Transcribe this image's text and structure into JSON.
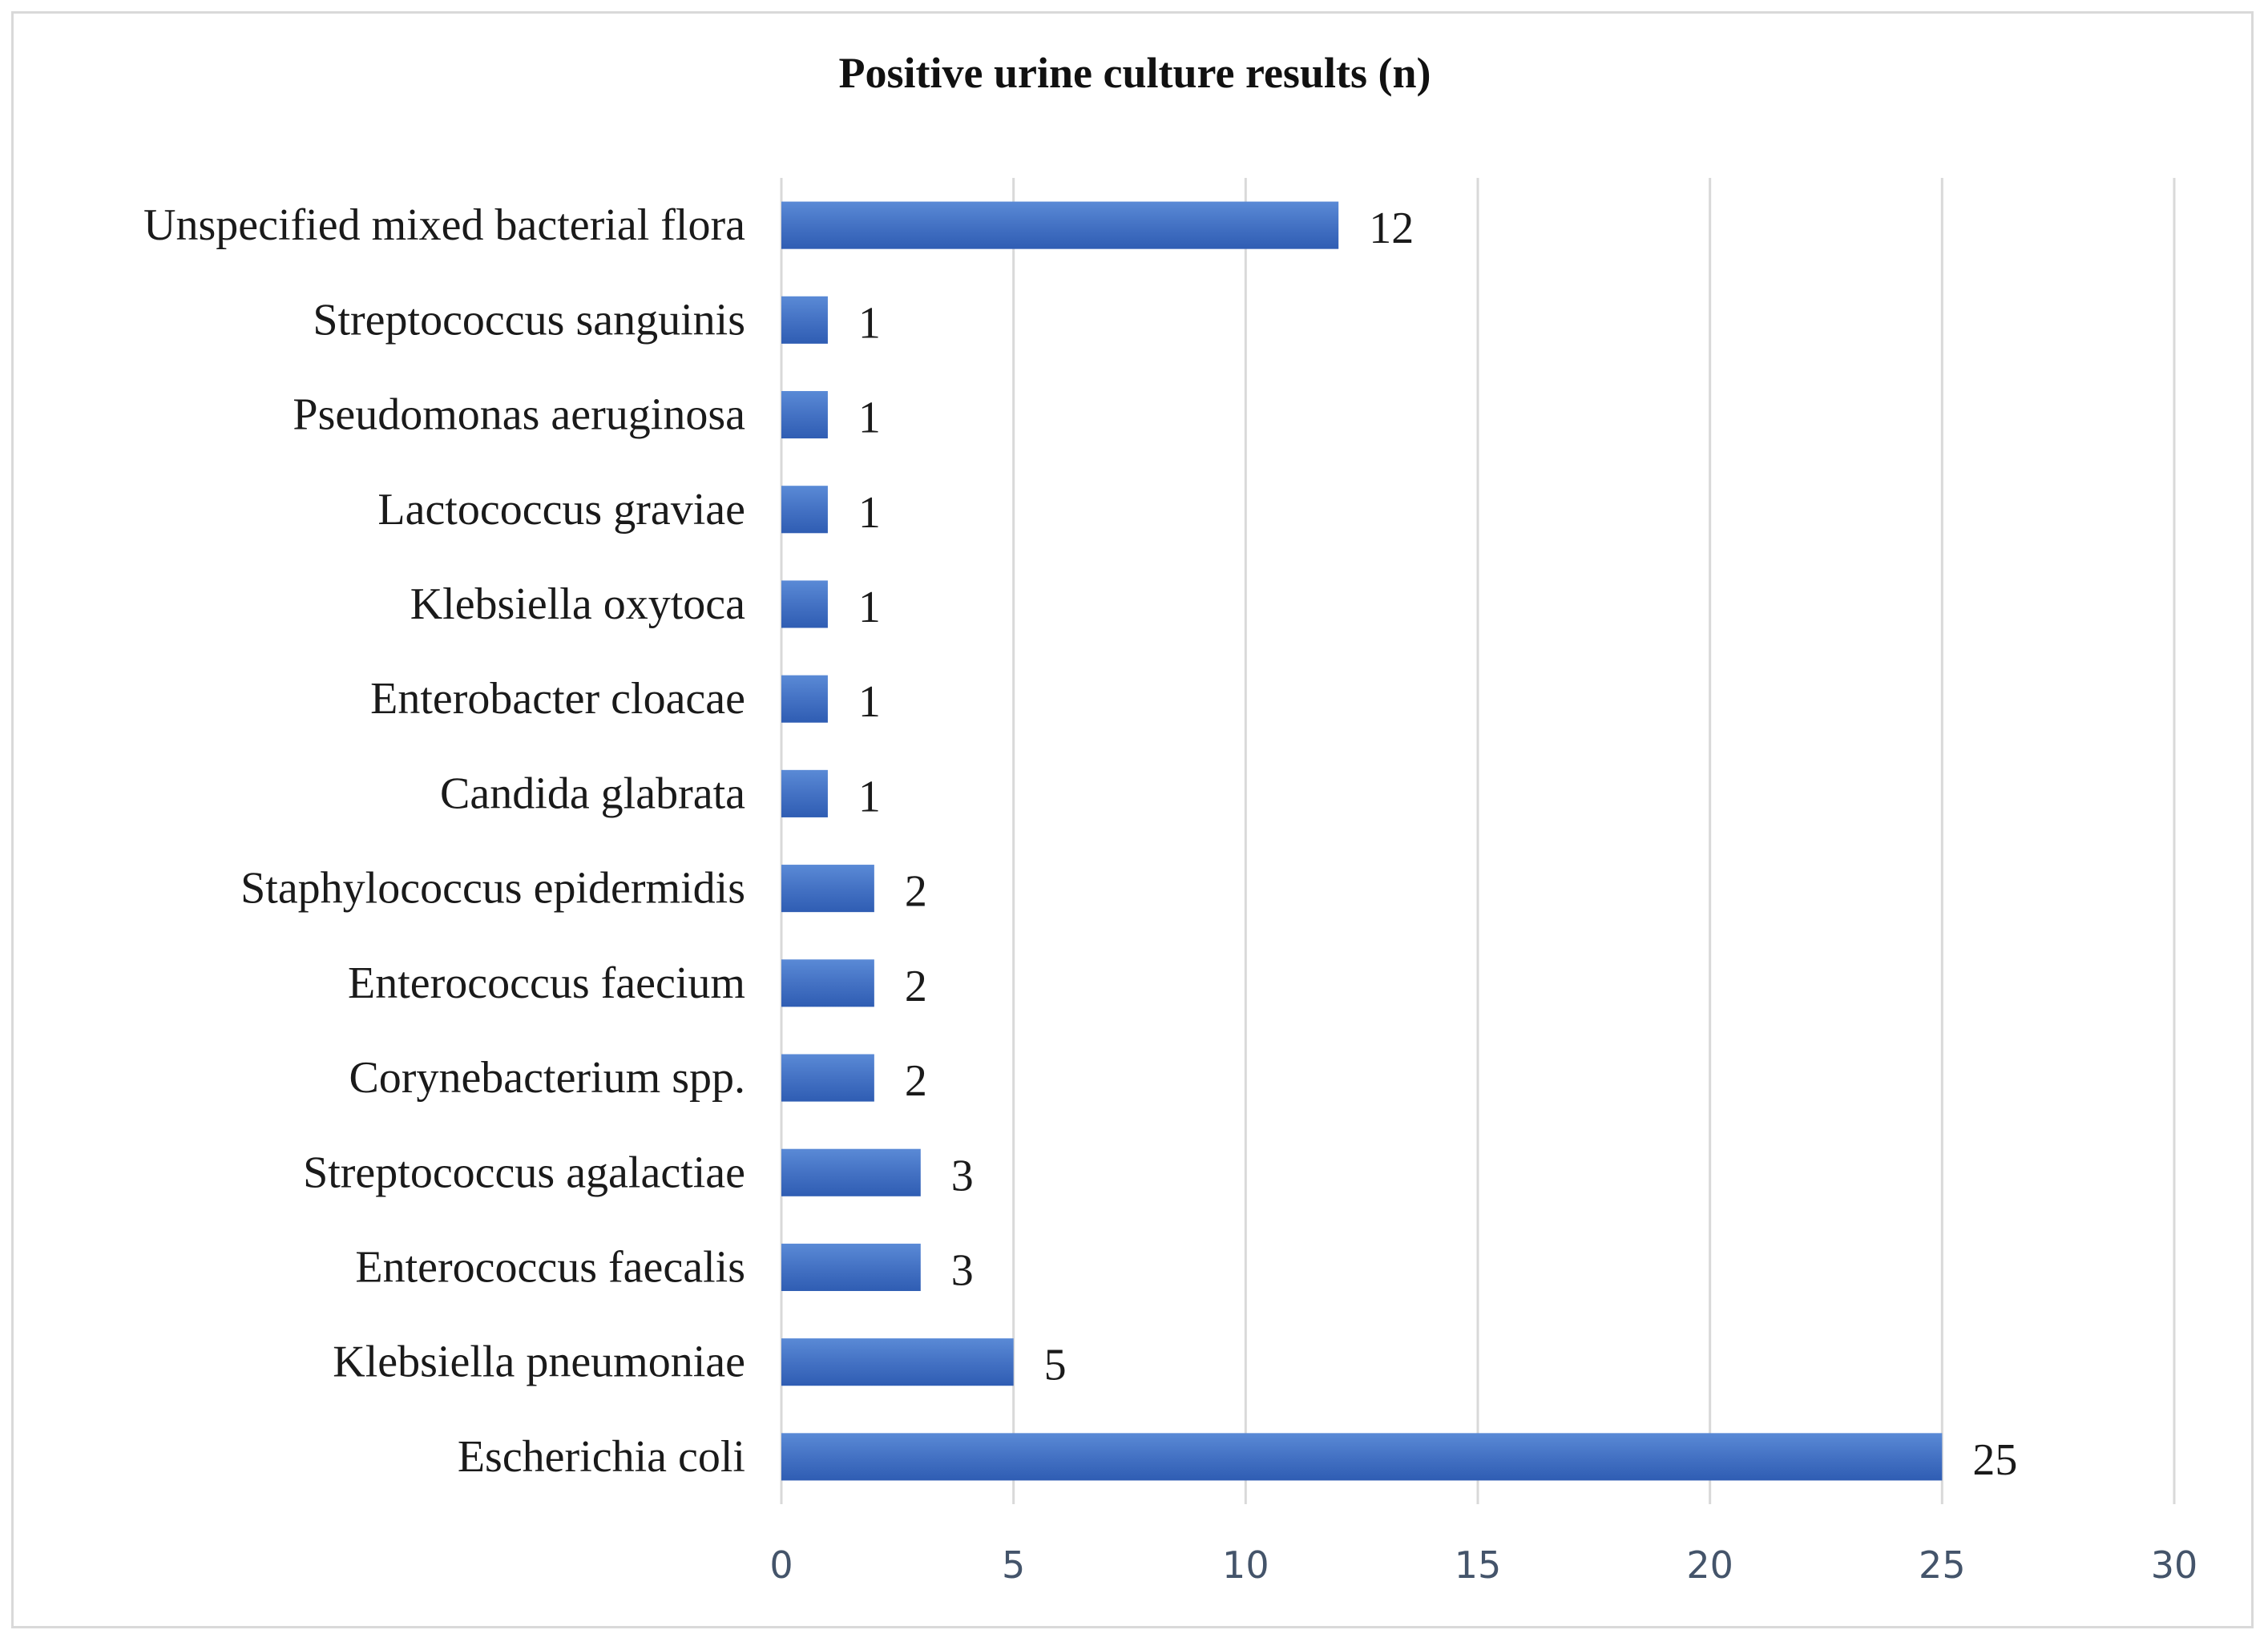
{
  "chart_data": {
    "type": "bar",
    "orientation": "horizontal",
    "title": "Positive urine culture results (n)",
    "xlabel": "",
    "ylabel": "",
    "categories": [
      "Unspecified mixed bacterial flora",
      "Streptococcus sanguinis",
      "Pseudomonas aeruginosa",
      "Lactococcus graviae",
      "Klebsiella oxytoca",
      "Enterobacter cloacae",
      "Candida glabrata",
      "Staphylococcus epidermidis",
      "Enterococcus faecium",
      "Corynebacterium spp.",
      "Streptococcus agalactiae",
      "Enterococcus faecalis",
      "Klebsiella pneumoniae",
      "Escherichia coli"
    ],
    "values": [
      12,
      1,
      1,
      1,
      1,
      1,
      1,
      2,
      2,
      2,
      3,
      3,
      5,
      25
    ],
    "xlim": [
      0,
      30
    ],
    "xticks": [
      0,
      5,
      10,
      15,
      20,
      25,
      30
    ],
    "grid": true,
    "legend": "none",
    "bar_color": "#4472c4",
    "bar_color_light": "#5a8ad6",
    "bar_color_dark": "#2f5db3",
    "gridline_color": "#d9d9d9",
    "data_labels": true
  }
}
